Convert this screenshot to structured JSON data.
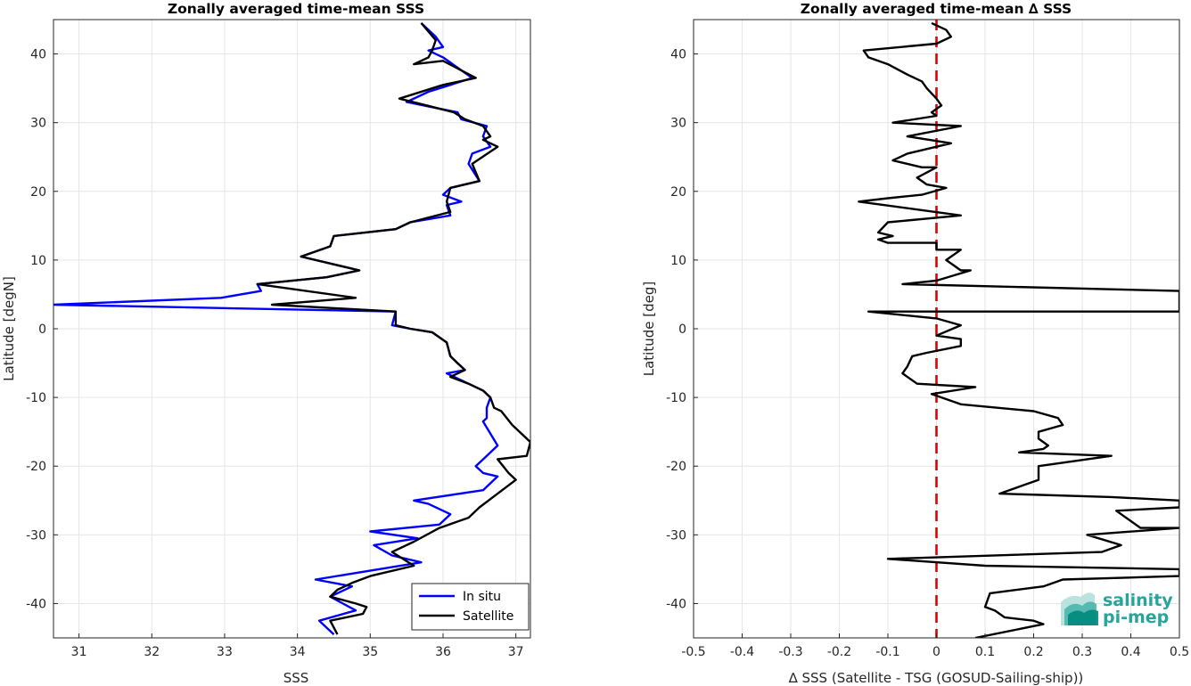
{
  "chart_data": [
    {
      "type": "line",
      "title": "Zonally averaged time-mean SSS",
      "xlabel": "SSS",
      "ylabel": "Latitude [degN]",
      "xlim": [
        30.65,
        37.2
      ],
      "ylim": [
        -45,
        45
      ],
      "xticks": [
        "31",
        "32",
        "33",
        "34",
        "35",
        "36",
        "37"
      ],
      "yticks": [
        "40",
        "30",
        "20",
        "10",
        "0",
        "-10",
        "-20",
        "-30",
        "-40"
      ],
      "grid": true,
      "legend_position": "bottom-right",
      "series": [
        {
          "name": "In situ",
          "color": "#0000ff",
          "points": [
            [
              35.7,
              44.5
            ],
            [
              35.9,
              42.5
            ],
            [
              36.0,
              41
            ],
            [
              35.8,
              40.5
            ],
            [
              36.0,
              39.5
            ],
            [
              36.4,
              36.5
            ],
            [
              36.1,
              35.5
            ],
            [
              35.8,
              34.5
            ],
            [
              35.5,
              33
            ],
            [
              36.2,
              31.5
            ],
            [
              36.25,
              30.5
            ],
            [
              36.6,
              29.5
            ],
            [
              36.55,
              28
            ],
            [
              36.65,
              26.5
            ],
            [
              36.4,
              25.5
            ],
            [
              36.35,
              24
            ],
            [
              36.5,
              21.5
            ],
            [
              36.1,
              20.5
            ],
            [
              36.0,
              19.5
            ],
            [
              36.25,
              18.5
            ],
            [
              36.05,
              18
            ],
            [
              36.1,
              16.5
            ],
            [
              35.55,
              15.5
            ],
            [
              35.35,
              14.5
            ],
            [
              34.5,
              13.5
            ],
            [
              34.45,
              12
            ],
            [
              34.05,
              10.5
            ],
            [
              34.85,
              8.5
            ],
            [
              34.4,
              7.5
            ],
            [
              33.45,
              6.5
            ],
            [
              33.5,
              5.5
            ],
            [
              32.95,
              4.5
            ],
            [
              30.65,
              3.5
            ],
            [
              35.35,
              2.5
            ],
            [
              35.3,
              0.5
            ],
            [
              35.55,
              0
            ],
            [
              35.85,
              -0.5
            ],
            [
              36.05,
              -2
            ],
            [
              36.1,
              -4
            ],
            [
              36.2,
              -5
            ],
            [
              36.3,
              -6
            ],
            [
              36.05,
              -6.5
            ],
            [
              36.35,
              -8
            ],
            [
              36.55,
              -9
            ],
            [
              36.65,
              -10
            ],
            [
              36.6,
              -11.5
            ],
            [
              36.6,
              -13
            ],
            [
              36.55,
              -13.5
            ],
            [
              36.75,
              -17
            ],
            [
              36.6,
              -18.5
            ],
            [
              36.45,
              -20
            ],
            [
              36.55,
              -21
            ],
            [
              36.75,
              -21.5
            ],
            [
              36.55,
              -23.5
            ],
            [
              35.6,
              -25
            ],
            [
              35.8,
              -25.5
            ],
            [
              36.1,
              -27
            ],
            [
              35.95,
              -28.5
            ],
            [
              35.0,
              -29.5
            ],
            [
              35.65,
              -30.5
            ],
            [
              35.05,
              -31.5
            ],
            [
              35.3,
              -33
            ],
            [
              35.7,
              -34
            ],
            [
              34.25,
              -36.5
            ],
            [
              34.75,
              -37.5
            ],
            [
              34.45,
              -39
            ],
            [
              34.8,
              -41
            ],
            [
              34.3,
              -42.5
            ],
            [
              34.5,
              -44.5
            ]
          ]
        },
        {
          "name": "Satellite",
          "color": "#000000",
          "points": [
            [
              35.7,
              44.5
            ],
            [
              35.9,
              42
            ],
            [
              35.85,
              40.5
            ],
            [
              35.8,
              39.5
            ],
            [
              35.6,
              38.5
            ],
            [
              36.0,
              39
            ],
            [
              36.45,
              36.5
            ],
            [
              36.0,
              35.5
            ],
            [
              35.4,
              33.5
            ],
            [
              36.15,
              31.5
            ],
            [
              36.3,
              30.5
            ],
            [
              36.55,
              29.5
            ],
            [
              36.65,
              28
            ],
            [
              36.55,
              27.5
            ],
            [
              36.75,
              26.5
            ],
            [
              36.4,
              24
            ],
            [
              36.5,
              21.5
            ],
            [
              36.1,
              20.5
            ],
            [
              36.05,
              18.5
            ],
            [
              36.1,
              17
            ],
            [
              35.55,
              15.5
            ],
            [
              35.35,
              14.5
            ],
            [
              34.5,
              13.5
            ],
            [
              34.45,
              12
            ],
            [
              34.05,
              10.5
            ],
            [
              34.85,
              8.5
            ],
            [
              34.4,
              7.5
            ],
            [
              33.45,
              6.5
            ],
            [
              34.8,
              4.5
            ],
            [
              33.65,
              3.5
            ],
            [
              35.35,
              2.5
            ],
            [
              35.35,
              0.5
            ],
            [
              35.55,
              0
            ],
            [
              35.85,
              -0.5
            ],
            [
              36.05,
              -2
            ],
            [
              36.1,
              -4
            ],
            [
              36.2,
              -5
            ],
            [
              36.3,
              -6
            ],
            [
              36.1,
              -7
            ],
            [
              36.35,
              -8
            ],
            [
              36.55,
              -9
            ],
            [
              36.65,
              -10
            ],
            [
              36.7,
              -11.5
            ],
            [
              36.8,
              -12
            ],
            [
              36.95,
              -14
            ],
            [
              37.2,
              -16.5
            ],
            [
              37.15,
              -18.5
            ],
            [
              36.75,
              -19
            ],
            [
              36.9,
              -21
            ],
            [
              37.0,
              -22
            ],
            [
              36.75,
              -24
            ],
            [
              36.5,
              -26
            ],
            [
              36.35,
              -27.5
            ],
            [
              35.95,
              -29
            ],
            [
              35.6,
              -31
            ],
            [
              35.3,
              -32.5
            ],
            [
              35.6,
              -34.5
            ],
            [
              35.0,
              -36
            ],
            [
              34.75,
              -37
            ],
            [
              34.55,
              -38
            ],
            [
              34.45,
              -39
            ],
            [
              34.8,
              -40
            ],
            [
              34.95,
              -40.5
            ],
            [
              34.9,
              -41.5
            ],
            [
              34.45,
              -42.5
            ],
            [
              34.55,
              -44.5
            ]
          ]
        }
      ]
    },
    {
      "type": "line",
      "title": "Zonally averaged time-mean ∆ SSS",
      "xlabel": "∆ SSS (Satellite - TSG (GOSUD-Sailing-ship))",
      "ylabel": "Latitude [deg]",
      "xlim": [
        -0.5,
        0.5
      ],
      "ylim": [
        -45,
        45
      ],
      "xticks": [
        "-0.5",
        "-0.4",
        "-0.3",
        "-0.2",
        "-0.1",
        "0",
        "0.1",
        "0.2",
        "0.3",
        "0.4",
        "0.5"
      ],
      "yticks": [
        "40",
        "30",
        "20",
        "10",
        "0",
        "-10",
        "-20",
        "-30",
        "-40"
      ],
      "grid": true,
      "reference_line": {
        "x": 0,
        "color": "#e00000",
        "style": "dashed"
      },
      "series": [
        {
          "color": "#000000",
          "points": [
            [
              -0.01,
              44.5
            ],
            [
              0.02,
              43.5
            ],
            [
              0.03,
              42.5
            ],
            [
              0.0,
              41.5
            ],
            [
              -0.15,
              40.5
            ],
            [
              -0.14,
              39.5
            ],
            [
              -0.1,
              38.5
            ],
            [
              -0.06,
              37
            ],
            [
              -0.03,
              36
            ],
            [
              -0.02,
              35
            ],
            [
              0.0,
              33.5
            ],
            [
              0.01,
              32.5
            ],
            [
              -0.01,
              31.5
            ],
            [
              0.0,
              31
            ],
            [
              -0.09,
              30
            ],
            [
              0.05,
              29.5
            ],
            [
              -0.06,
              28
            ],
            [
              0.03,
              27
            ],
            [
              -0.06,
              25.5
            ],
            [
              -0.09,
              24.5
            ],
            [
              -0.03,
              23.5
            ],
            [
              0.0,
              23.5
            ],
            [
              -0.04,
              22
            ],
            [
              -0.02,
              21
            ],
            [
              0.02,
              20.5
            ],
            [
              -0.03,
              19.5
            ],
            [
              -0.1,
              19
            ],
            [
              -0.16,
              18.5
            ],
            [
              0.05,
              16.5
            ],
            [
              -0.1,
              15.5
            ],
            [
              -0.12,
              14
            ],
            [
              -0.09,
              13.5
            ],
            [
              -0.12,
              13
            ],
            [
              -0.1,
              12.5
            ],
            [
              0.0,
              12.5
            ],
            [
              0.0,
              11.5
            ],
            [
              0.05,
              11.5
            ],
            [
              0.02,
              10
            ],
            [
              0.05,
              8.5
            ],
            [
              0.07,
              8.5
            ],
            [
              0.0,
              7
            ],
            [
              -0.07,
              6.5
            ],
            [
              0.5,
              5.5
            ],
            [
              0.5,
              2.5
            ],
            [
              -0.14,
              2.5
            ],
            [
              0.0,
              1.5
            ],
            [
              0.05,
              0.5
            ],
            [
              0.0,
              -1
            ],
            [
              0.05,
              -1.5
            ],
            [
              0.05,
              -2.5
            ],
            [
              -0.02,
              -3.5
            ],
            [
              -0.05,
              -4
            ],
            [
              -0.06,
              -5.5
            ],
            [
              -0.07,
              -6.5
            ],
            [
              -0.04,
              -8
            ],
            [
              0.08,
              -8.5
            ],
            [
              -0.01,
              -9.5
            ],
            [
              0.05,
              -11
            ],
            [
              0.2,
              -12
            ],
            [
              0.25,
              -13
            ],
            [
              0.26,
              -14
            ],
            [
              0.21,
              -15
            ],
            [
              0.21,
              -16
            ],
            [
              0.23,
              -17
            ],
            [
              0.22,
              -17.5
            ],
            [
              0.17,
              -18
            ],
            [
              0.36,
              -18.5
            ],
            [
              0.21,
              -20
            ],
            [
              0.21,
              -22
            ],
            [
              0.13,
              -24
            ],
            [
              0.36,
              -24.5
            ],
            [
              0.5,
              -25
            ],
            [
              0.5,
              -26
            ],
            [
              0.37,
              -26.5
            ],
            [
              0.4,
              -28
            ],
            [
              0.42,
              -29
            ],
            [
              0.5,
              -29
            ],
            [
              0.31,
              -30
            ],
            [
              0.38,
              -31.5
            ],
            [
              0.34,
              -32.5
            ],
            [
              -0.1,
              -33.5
            ],
            [
              0.1,
              -34.5
            ],
            [
              0.5,
              -35
            ],
            [
              0.5,
              -36
            ],
            [
              0.26,
              -36.5
            ],
            [
              0.22,
              -37.5
            ],
            [
              0.11,
              -38.5
            ],
            [
              0.1,
              -40.5
            ],
            [
              0.12,
              -41
            ],
            [
              0.14,
              -42
            ],
            [
              0.2,
              -42.5
            ],
            [
              0.22,
              -43
            ],
            [
              0.08,
              -45
            ]
          ]
        }
      ]
    }
  ],
  "logo": {
    "line1": "salinity",
    "line2": "pi-mep",
    "color": "#26a69a"
  }
}
